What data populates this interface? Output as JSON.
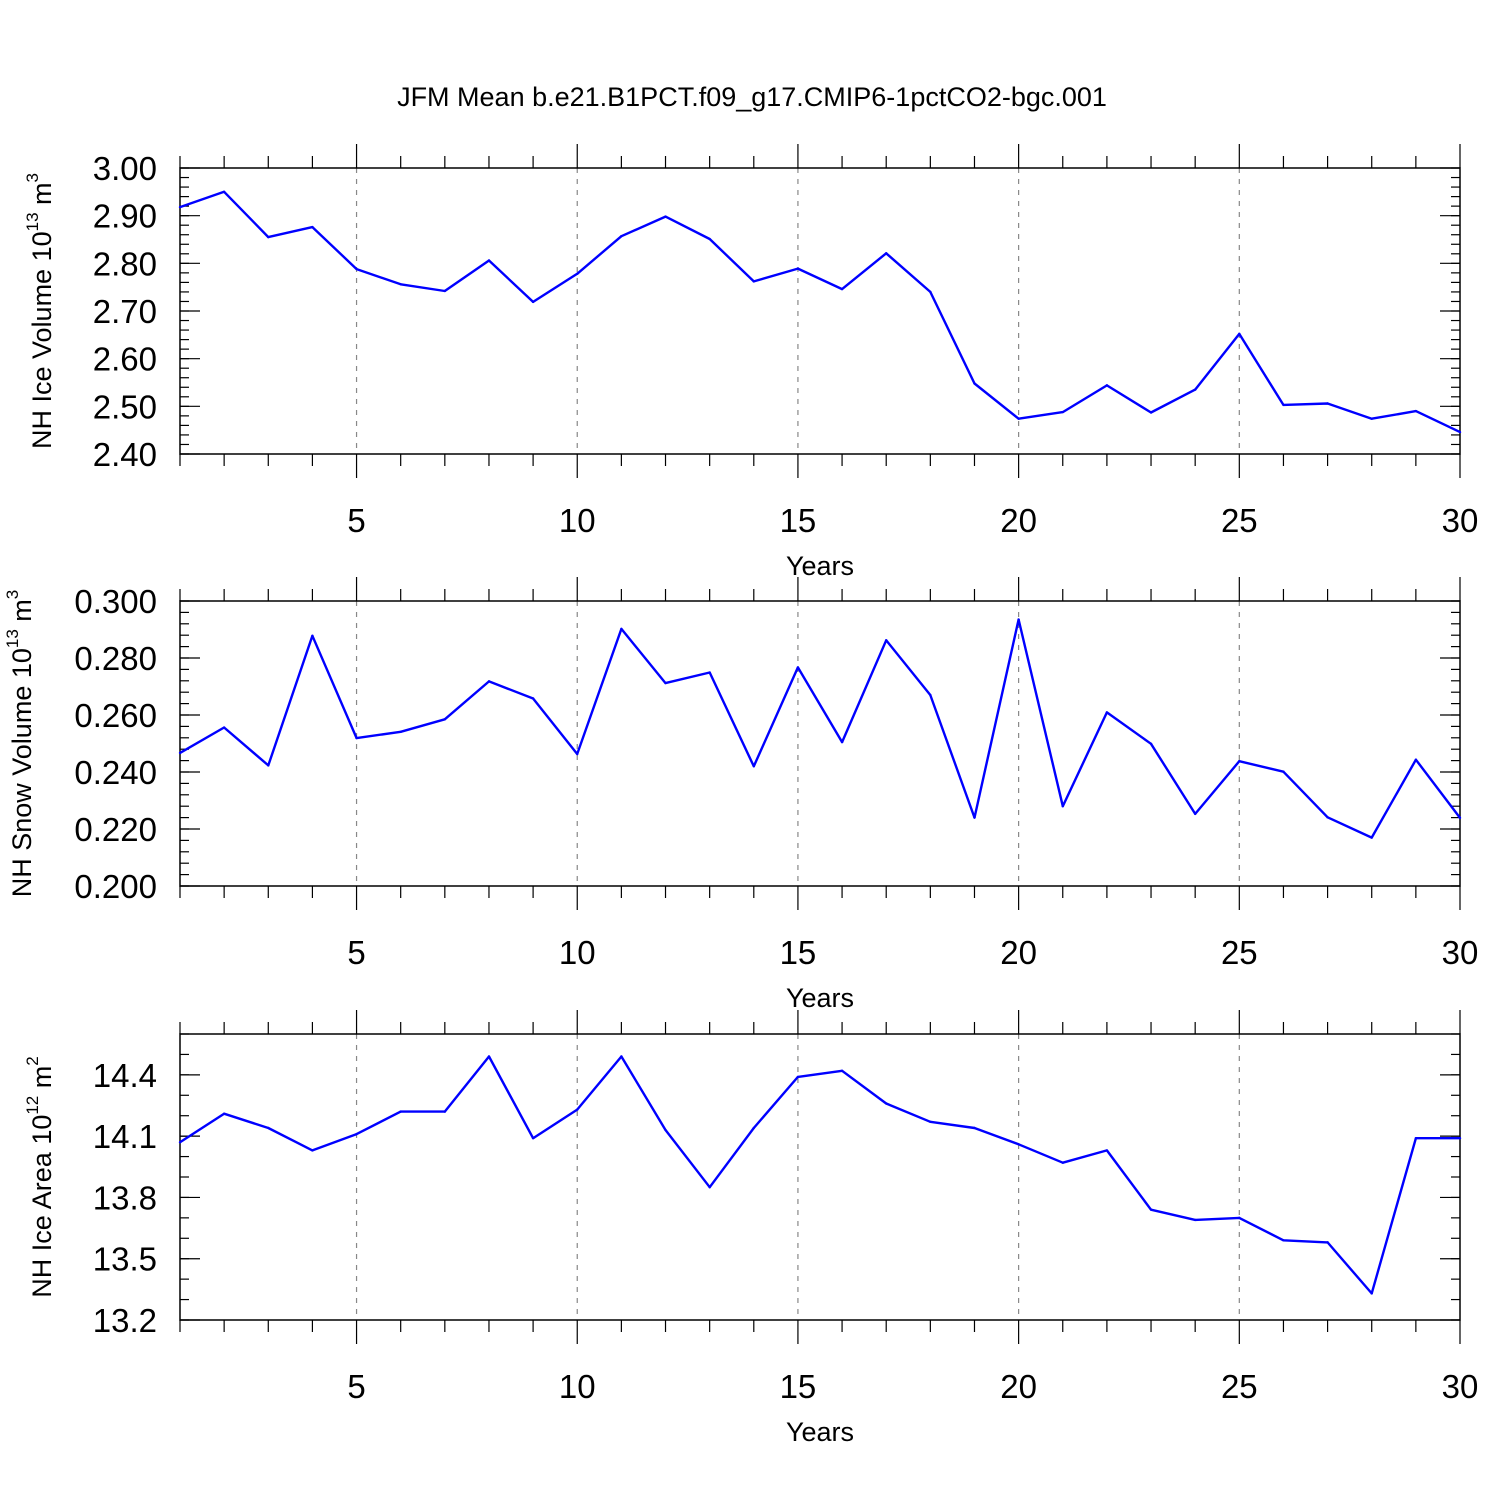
{
  "title": "JFM Mean b.e21.B1PCT.f09_g17.CMIP6-1pctCO2-bgc.001",
  "chart_data": [
    {
      "type": "line",
      "xlabel": "Years",
      "ylabel": {
        "base": "NH Ice Volume 10",
        "exp": "13",
        "unit": " m",
        "unit_exp": "3"
      },
      "xlim": [
        1,
        30
      ],
      "ylim": [
        2.4,
        3.0
      ],
      "x_ticks": [
        5,
        10,
        15,
        20,
        25,
        30
      ],
      "y_ticks": [
        2.4,
        2.5,
        2.6,
        2.7,
        2.8,
        2.9,
        3.0
      ],
      "y_decimals": 2,
      "y_minor_step": 0.02,
      "grid": "dashed vertical at major x ticks",
      "series": [
        {
          "name": "NH Ice Volume",
          "color": "#0000ff",
          "x": [
            1,
            2,
            3,
            4,
            5,
            6,
            7,
            8,
            9,
            10,
            11,
            12,
            13,
            14,
            15,
            16,
            17,
            18,
            19,
            20,
            21,
            22,
            23,
            24,
            25,
            26,
            27,
            28,
            29,
            30
          ],
          "values": [
            2.918,
            2.95,
            2.855,
            2.876,
            2.788,
            2.756,
            2.742,
            2.806,
            2.719,
            2.778,
            2.857,
            2.898,
            2.851,
            2.762,
            2.789,
            2.746,
            2.821,
            2.74,
            2.548,
            2.474,
            2.488,
            2.544,
            2.487,
            2.535,
            2.652,
            2.503,
            2.506,
            2.474,
            2.49,
            2.446
          ]
        }
      ]
    },
    {
      "type": "line",
      "xlabel": "Years",
      "ylabel": {
        "base": "NH Snow Volume 10",
        "exp": "13",
        "unit": " m",
        "unit_exp": "3"
      },
      "xlim": [
        1,
        30
      ],
      "ylim": [
        0.2,
        0.3
      ],
      "x_ticks": [
        5,
        10,
        15,
        20,
        25,
        30
      ],
      "y_ticks": [
        0.2,
        0.22,
        0.24,
        0.26,
        0.28,
        0.3
      ],
      "y_decimals": 3,
      "y_minor_step": 0.004,
      "grid": "dashed vertical at major x ticks",
      "series": [
        {
          "name": "NH Snow Volume",
          "color": "#0000ff",
          "x": [
            1,
            2,
            3,
            4,
            5,
            6,
            7,
            8,
            9,
            10,
            11,
            12,
            13,
            14,
            15,
            16,
            17,
            18,
            19,
            20,
            21,
            22,
            23,
            24,
            25,
            26,
            27,
            28,
            29,
            30
          ],
          "values": [
            0.2467,
            0.2556,
            0.2423,
            0.2878,
            0.2519,
            0.2541,
            0.2585,
            0.2718,
            0.2658,
            0.2463,
            0.2902,
            0.2712,
            0.2749,
            0.242,
            0.2767,
            0.2505,
            0.2862,
            0.267,
            0.224,
            0.2935,
            0.228,
            0.2609,
            0.2499,
            0.2253,
            0.2438,
            0.2401,
            0.2241,
            0.217,
            0.2443,
            0.2239
          ]
        }
      ]
    },
    {
      "type": "line",
      "xlabel": "Years",
      "ylabel": {
        "base": "NH Ice Area 10",
        "exp": "12",
        "unit": " m",
        "unit_exp": "2"
      },
      "xlim": [
        1,
        30
      ],
      "ylim": [
        13.2,
        14.6
      ],
      "x_ticks": [
        5,
        10,
        15,
        20,
        25,
        30
      ],
      "y_ticks": [
        13.2,
        13.5,
        13.8,
        14.1,
        14.4
      ],
      "y_decimals": 1,
      "y_minor_step": 0.1,
      "grid": "dashed vertical at major x ticks",
      "series": [
        {
          "name": "NH Ice Area",
          "color": "#0000ff",
          "x": [
            1,
            2,
            3,
            4,
            5,
            6,
            7,
            8,
            9,
            10,
            11,
            12,
            13,
            14,
            15,
            16,
            17,
            18,
            19,
            20,
            21,
            22,
            23,
            24,
            25,
            26,
            27,
            28,
            29,
            30
          ],
          "values": [
            14.07,
            14.21,
            14.14,
            14.03,
            14.11,
            14.22,
            14.22,
            14.49,
            14.09,
            14.23,
            14.49,
            14.13,
            13.85,
            14.14,
            14.39,
            14.42,
            14.26,
            14.17,
            14.14,
            14.06,
            13.97,
            14.03,
            13.74,
            13.69,
            13.7,
            13.59,
            13.58,
            13.33,
            14.09,
            14.09
          ]
        }
      ]
    }
  ]
}
